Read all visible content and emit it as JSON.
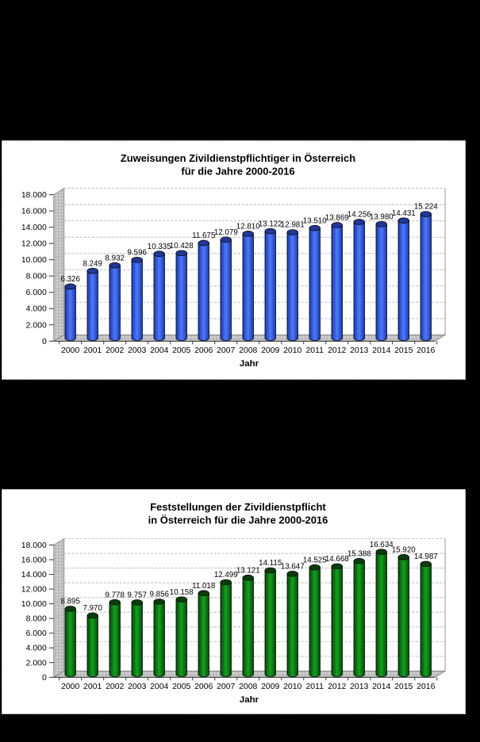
{
  "page": {
    "background_color": "#000000",
    "panel_background_color": "#ffffff"
  },
  "chart_data": [
    {
      "type": "bar",
      "style": "3d-cylinder",
      "title": "Zuweisungen Zivildienstpflichtiger in Österreich",
      "title_line2": "für die Jahre 2000-2016",
      "xlabel": "Jahr",
      "ylabel": "",
      "categories": [
        "2000",
        "2001",
        "2002",
        "2003",
        "2004",
        "2005",
        "2006",
        "2007",
        "2008",
        "2009",
        "2010",
        "2011",
        "2012",
        "2013",
        "2014",
        "2015",
        "2016"
      ],
      "values": [
        6326,
        8249,
        8932,
        9596,
        10335,
        10428,
        11675,
        12079,
        12810,
        13122,
        12981,
        13510,
        13869,
        14256,
        13980,
        14431,
        15224
      ],
      "ylim": [
        0,
        18000
      ],
      "ytick_step": 2000,
      "grid": true,
      "legend": false,
      "data_labels": true,
      "number_format": "thousands-dot",
      "colors": {
        "light": "#4f7dfb",
        "mid": "#2b50d8",
        "edge": "#1c3dae",
        "cap": "#20389e"
      }
    },
    {
      "type": "bar",
      "style": "3d-cylinder",
      "title": "Feststellungen der Zivildienstpflicht",
      "title_line2": "in Österreich für die Jahre 2000-2016",
      "xlabel": "Jahr",
      "ylabel": "",
      "categories": [
        "2000",
        "2001",
        "2002",
        "2003",
        "2004",
        "2005",
        "2006",
        "2007",
        "2008",
        "2009",
        "2010",
        "2011",
        "2012",
        "2013",
        "2014",
        "2015",
        "2016"
      ],
      "values": [
        8895,
        7970,
        9778,
        9757,
        9856,
        10158,
        11018,
        12499,
        13121,
        14115,
        13647,
        14525,
        14668,
        15388,
        16634,
        15920,
        14987
      ],
      "ylim": [
        0,
        18000
      ],
      "ytick_step": 2000,
      "grid": true,
      "legend": false,
      "data_labels": true,
      "number_format": "thousands-dot",
      "colors": {
        "light": "#12a51c",
        "mid": "#0a6b10",
        "edge": "#064d08",
        "cap": "#073f08"
      }
    }
  ]
}
